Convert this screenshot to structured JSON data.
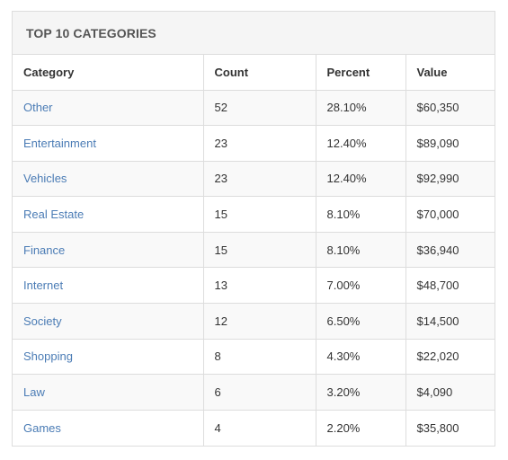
{
  "panel": {
    "title": "TOP 10 CATEGORIES"
  },
  "table": {
    "headers": [
      "Category",
      "Count",
      "Percent",
      "Value"
    ],
    "rows": [
      {
        "category": "Other",
        "count": "52",
        "percent": "28.10%",
        "value": "$60,350"
      },
      {
        "category": "Entertainment",
        "count": "23",
        "percent": "12.40%",
        "value": "$89,090"
      },
      {
        "category": "Vehicles",
        "count": "23",
        "percent": "12.40%",
        "value": "$92,990"
      },
      {
        "category": "Real Estate",
        "count": "15",
        "percent": "8.10%",
        "value": "$70,000"
      },
      {
        "category": "Finance",
        "count": "15",
        "percent": "8.10%",
        "value": "$36,940"
      },
      {
        "category": "Internet",
        "count": "13",
        "percent": "7.00%",
        "value": "$48,700"
      },
      {
        "category": "Society",
        "count": "12",
        "percent": "6.50%",
        "value": "$14,500"
      },
      {
        "category": "Shopping",
        "count": "8",
        "percent": "4.30%",
        "value": "$22,020"
      },
      {
        "category": "Law",
        "count": "6",
        "percent": "3.20%",
        "value": "$4,090"
      },
      {
        "category": "Games",
        "count": "4",
        "percent": "2.20%",
        "value": "$35,800"
      }
    ]
  },
  "colors": {
    "link": "#4b7cb5",
    "heading_bg": "#f5f5f5",
    "stripe": "#f9f9f9",
    "border": "#dddddd"
  }
}
